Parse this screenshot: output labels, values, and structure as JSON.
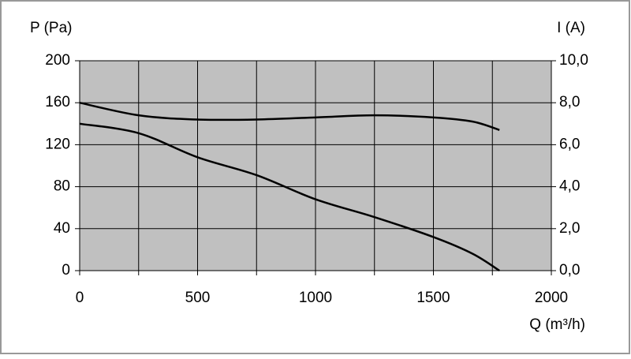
{
  "chart_data": {
    "type": "line",
    "y_label": "P (Pa)",
    "y2_label": "I (A)",
    "x_label": "Q (m³/h)",
    "x": [
      0,
      250,
      500,
      750,
      1000,
      1250,
      1500,
      1667,
      1780
    ],
    "series": [
      {
        "name": "P",
        "color": "#000000",
        "values": [
          140,
          131,
          108,
          91,
          68,
          51,
          32,
          16,
          0
        ]
      },
      {
        "name": "I",
        "color": "#000000",
        "axis": "y2",
        "values": [
          8.0,
          7.4,
          7.2,
          7.2,
          7.3,
          7.4,
          7.3,
          7.1,
          6.7
        ]
      }
    ],
    "xlim": [
      0,
      2000
    ],
    "xticks": [
      0,
      500,
      1000,
      1500,
      2000
    ],
    "x_minor_grid": [
      250,
      750,
      1250,
      1750
    ],
    "ylim": [
      0,
      200
    ],
    "yticks": [
      0,
      40,
      80,
      120,
      160,
      200
    ],
    "y2lim": [
      0,
      10
    ],
    "y2ticks": [
      {
        "value": 0,
        "label": "0,0"
      },
      {
        "value": 2,
        "label": "2,0"
      },
      {
        "value": 4,
        "label": "4,0"
      },
      {
        "value": 6,
        "label": "6,0"
      },
      {
        "value": 8,
        "label": "8,0"
      },
      {
        "value": 10,
        "label": "10,0"
      }
    ],
    "grid": true,
    "plot_background": "#c0c0c0"
  }
}
